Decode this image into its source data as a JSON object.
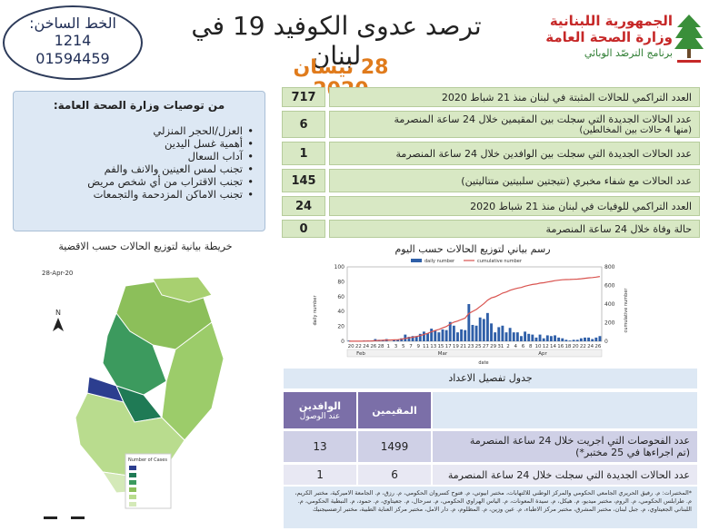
{
  "hotline": {
    "title": "الخط الساخن:",
    "numbers": [
      "1214",
      "01594459"
    ]
  },
  "header": {
    "title": "ترصد عدوى الكوفيد 19 في لبنان",
    "date": "28 نيسان 2020"
  },
  "ministry": {
    "line1": "الجمهورية اللبنانية",
    "line2": "وزارة الصحة العامة",
    "line3": "برنامج الترصّد الوبائي"
  },
  "recommendations": {
    "title": "من توصيات وزارة الصحة العامة:",
    "items": [
      "العزل/الحجر المنزلي",
      "أهمية غسل اليدين",
      "آداب السعال",
      "تجنب لمس العينين والانف والفم",
      "تجنب الاقتراب من أي شخص مريض",
      "تجنب الاماكن المزدحمة والتجمعات"
    ]
  },
  "stats": [
    {
      "label": "العدد التراكمي للحالات المثبتة في لبنان منذ 21 شباط 2020",
      "sub": "",
      "value": "717"
    },
    {
      "label": "عدد الحالات الجديدة التي سجلت بين المقيمين خلال 24 ساعة المنصرمة",
      "sub": "(منها 4 حالات بين المخالطين)",
      "value": "6"
    },
    {
      "label": "عدد الحالات الجديدة التي سجلت بين الوافدين خلال 24 ساعة المنصرمة",
      "sub": "",
      "value": "1"
    },
    {
      "label": "عدد الحالات مع شفاء مخبري (نتيجتين سلبيتين متتاليتين)",
      "sub": "",
      "value": "145"
    },
    {
      "label": "العدد التراكمي للوفيات في لبنان منذ 21 شباط 2020",
      "sub": "",
      "value": "24"
    },
    {
      "label": "حالة وفاة خلال 24 ساعة المنصرمة",
      "sub": "",
      "value": "0"
    }
  ],
  "map": {
    "title": "خريطة بيانية لتوزيع الحالات حسب الاقضية",
    "date": "28-Apr-20",
    "legend_title": "Number of Cases",
    "north": "N"
  },
  "chart": {
    "title": "رسم بياني لتوزيع الحالات حسب اليوم"
  },
  "chart_data": {
    "type": "bar",
    "legend": [
      "daily number",
      "cumulative number"
    ],
    "xlabel": "date",
    "ylabel_left": "daily number",
    "ylabel_right": "cumulative number",
    "ylim_left": [
      0,
      100
    ],
    "ylim_right": [
      0,
      800
    ],
    "y_ticks_left": [
      0,
      20,
      40,
      60,
      80,
      100
    ],
    "y_ticks_right": [
      0,
      200,
      400,
      600,
      800
    ],
    "x_tick_labels": [
      "20",
      "22",
      "24",
      "26",
      "28",
      "1",
      "3",
      "5",
      "7",
      "9",
      "11",
      "13",
      "15",
      "17",
      "19",
      "21",
      "23",
      "25",
      "27",
      "29",
      "31",
      "2",
      "4",
      "6",
      "8",
      "10",
      "12",
      "14",
      "16",
      "18",
      "20",
      "22",
      "24",
      "26"
    ],
    "months": [
      "Feb",
      "Mar",
      "Apr"
    ],
    "daily": [
      1,
      0,
      0,
      0,
      1,
      1,
      1,
      3,
      2,
      2,
      3,
      0,
      2,
      2,
      4,
      9,
      6,
      7,
      7,
      10,
      13,
      11,
      17,
      14,
      12,
      16,
      15,
      26,
      21,
      12,
      16,
      15,
      50,
      22,
      21,
      32,
      30,
      38,
      24,
      12,
      19,
      21,
      12,
      18,
      12,
      12,
      7,
      13,
      10,
      9,
      5,
      9,
      4,
      8,
      7,
      8,
      5,
      4,
      2,
      1,
      2,
      2,
      4,
      5,
      5,
      3,
      5,
      7
    ],
    "series": [
      {
        "name": "daily number",
        "values": [
          1,
          0,
          0,
          0,
          1,
          1,
          1,
          3,
          2,
          2,
          3,
          0,
          2,
          2,
          4,
          9,
          6,
          7,
          7,
          10,
          13,
          11,
          17,
          14,
          12,
          16,
          15,
          26,
          21,
          12,
          16,
          15,
          50,
          22,
          21,
          32,
          30,
          38,
          24,
          12,
          19,
          21,
          12,
          18,
          12,
          12,
          7,
          13,
          10,
          9,
          5,
          9,
          4,
          8,
          7,
          8,
          5,
          4,
          2,
          1,
          2,
          2,
          4,
          5,
          5,
          3,
          5,
          7
        ]
      },
      {
        "name": "cumulative number",
        "values": [
          1,
          1,
          1,
          1,
          2,
          3,
          4,
          7,
          9,
          11,
          14,
          14,
          16,
          18,
          22,
          31,
          37,
          44,
          51,
          61,
          74,
          85,
          102,
          116,
          128,
          144,
          159,
          185,
          206,
          218,
          234,
          249,
          299,
          321,
          342,
          374,
          404,
          442,
          466,
          478,
          497,
          518,
          530,
          548,
          560,
          572,
          579,
          592,
          602,
          611,
          616,
          625,
          629,
          637,
          644,
          652,
          657,
          661,
          663,
          664,
          666,
          668,
          672,
          677,
          682,
          685,
          690,
          697
        ]
      }
    ]
  },
  "detail_table": {
    "title": "جدول تفصيل الاعداد",
    "col_residents": "المقيمين",
    "col_arrivals": "الوافدين",
    "col_arrivals_sub": "عند الوصول",
    "rows": [
      {
        "label": "عدد الفحوصات التي اجريت خلال 24 ساعة المنصرمة",
        "sub": "(تم اجراءها في 25 مختبر*)",
        "residents": "1499",
        "arrivals": "13"
      },
      {
        "label": "عدد الحالات الجديدة التي سجلت خلال 24 ساعة المنصرمة",
        "sub": "",
        "residents": "6",
        "arrivals": "1"
      }
    ]
  },
  "footnote": "*المختبرات: م. رفيق الحريري الجامعي الحكومي والمركز الوطني للالتهابات، مختبر ابيوتي، م. فتوح كسروان الحكومي، م. رزق، م. الجامعة الاميركية، مختبر الكريم، م. طرابلس الحكومي، م. الروم، مختبر ميديو، م. هيكل، م. سيدة المعونات، م. الياس الهراوي الحكومي، م. سرحال، م. جعيتاوي، م. حمود، م. النبطية الحكومي، م. اللبناني الجعيتاوي، م. جبل لبنان، مختبر المشرق، مختبر مركز الاطباء، م. عين وزين، م. المظلوم، م. دار الامل، مختبر مركز العناية الطبية، مختبر ارضسيجنيك"
}
